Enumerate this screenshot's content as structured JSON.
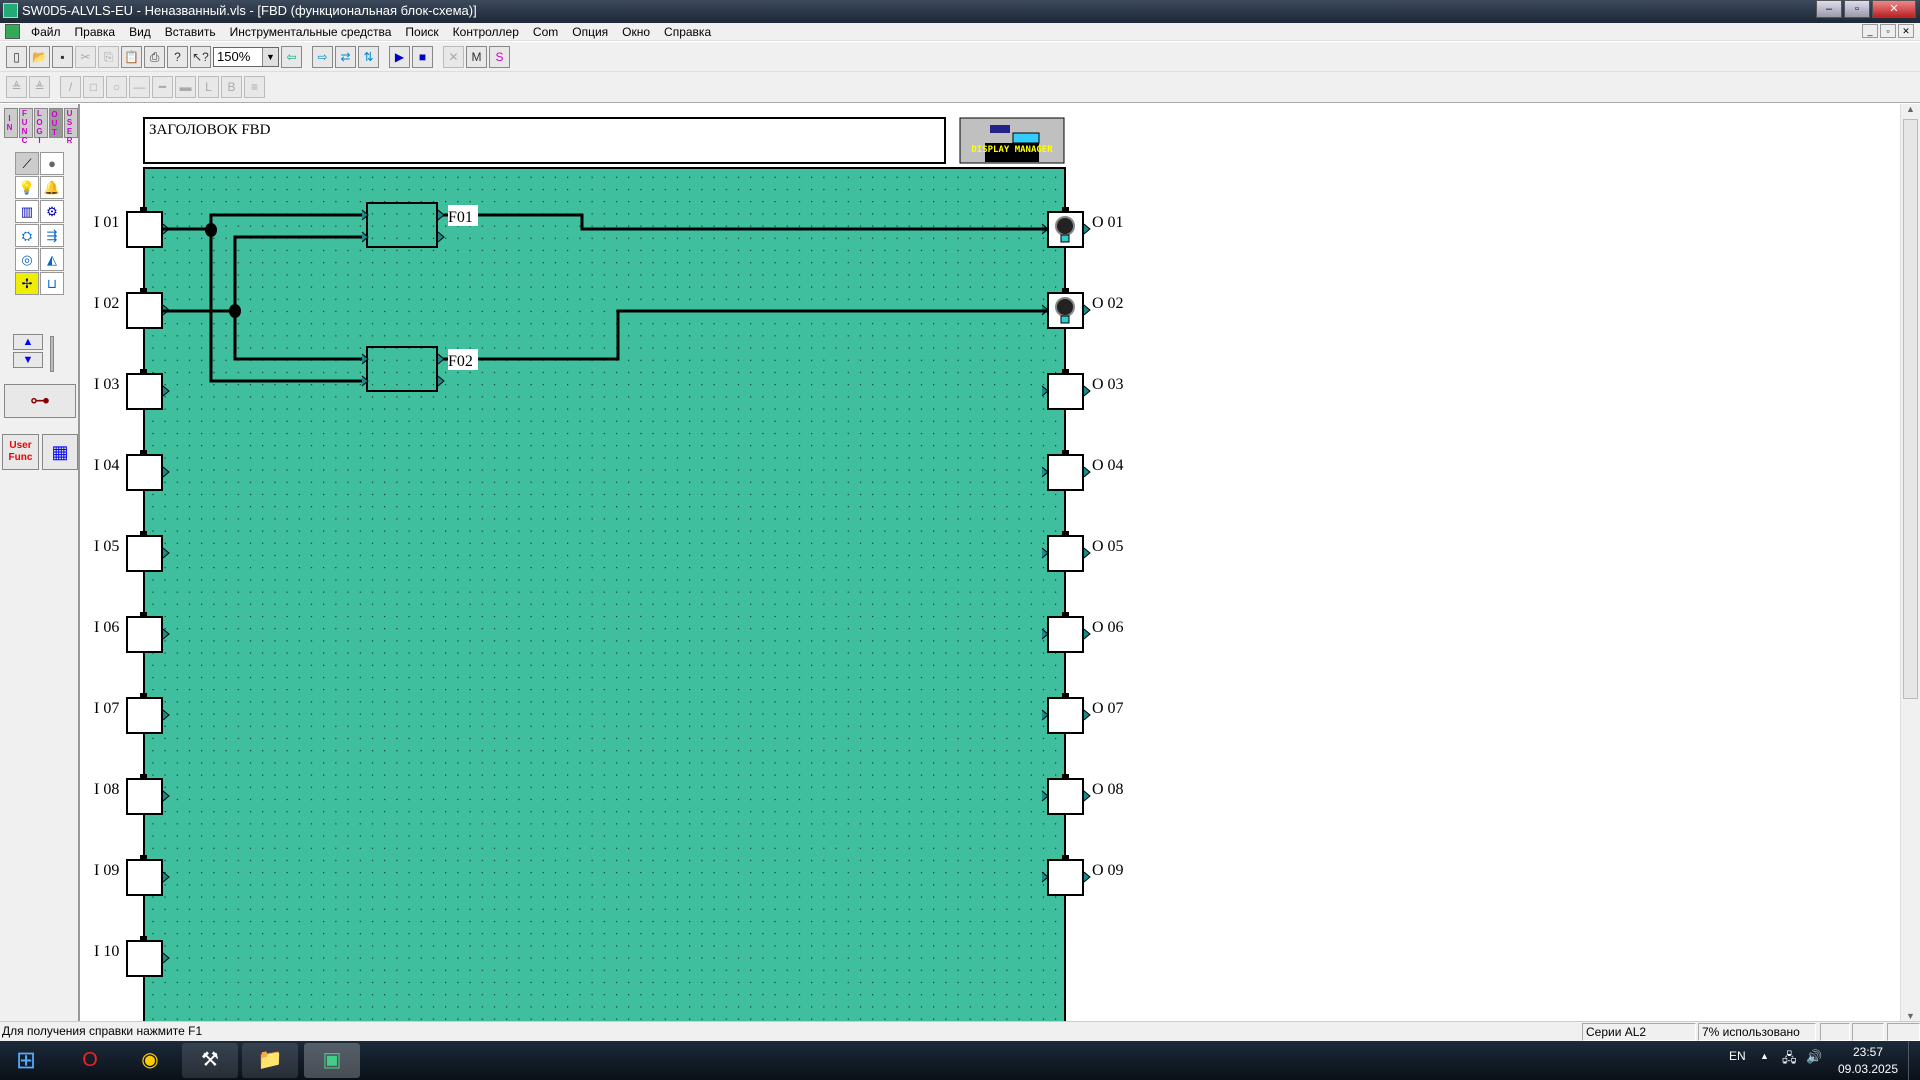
{
  "window": {
    "title": "SW0D5-ALVLS-EU - Неназванный.vls - [FBD (функциональная блок-схема)]",
    "controls": [
      "–",
      "▫",
      "✕"
    ]
  },
  "menu": [
    "Файл",
    "Правка",
    "Вид",
    "Вставить",
    "Инструментальные средства",
    "Поиск",
    "Контроллер",
    "Com",
    "Опция",
    "Окно",
    "Справка"
  ],
  "mdi_controls": [
    "_",
    "▫",
    "✕"
  ],
  "toolbar": {
    "zoom": "150%",
    "buttons1": [
      "new-file",
      "open-file",
      "save",
      "cut",
      "copy",
      "paste",
      "print",
      "help",
      "context-help"
    ],
    "buttons2": [
      "read",
      "verify",
      "write",
      "run",
      "stop",
      "disconnect",
      "monitor",
      "simulate"
    ],
    "drawing": [
      "align-top",
      "align-bottom",
      "line",
      "rectangle",
      "circle",
      "thin-line",
      "medium-line",
      "thick-line",
      "font",
      "border",
      "distribute"
    ]
  },
  "palette": {
    "tabs": [
      "IN",
      "FUNC",
      "LOGI",
      "OUT",
      "USER"
    ],
    "active_tab": "OUT",
    "items": [
      "switch",
      "lamp-dot",
      "bulb",
      "buzzer",
      "display",
      "motor",
      "valve",
      "cylinder",
      "pump",
      "nozzle",
      "fan",
      "tank"
    ],
    "user_func": "User Func"
  },
  "diagram": {
    "header": "ЗАГОЛОВОК FBD",
    "display_manager": "DISPLAY MANAGER",
    "bg_color": "#40bf9f",
    "inputs": [
      "I 01",
      "I 02",
      "I 03",
      "I 04",
      "I 05",
      "I 06",
      "I 07",
      "I 08",
      "I 09",
      "I 10"
    ],
    "outputs": [
      "O 01",
      "O 02",
      "O 03",
      "O 04",
      "O 05",
      "O 06",
      "O 07",
      "O 08",
      "O 09"
    ],
    "output_icons": [
      "bulb",
      "bulb"
    ],
    "blocks": [
      {
        "label": "F01",
        "inputs": [
          "I 01",
          "I 02"
        ],
        "output": "O 01"
      },
      {
        "label": "F02",
        "inputs": [
          "I 02",
          "I 01"
        ],
        "output": "O 02"
      }
    ]
  },
  "status": {
    "hint": "Для получения справки нажмите F1",
    "series": "Серии AL2",
    "usage": "7% использовано"
  },
  "taskbar": {
    "apps": [
      "start",
      "opera",
      "chrome",
      "tools",
      "explorer",
      "alvls"
    ],
    "lang": "EN",
    "time": "23:57",
    "date": "09.03.2025"
  }
}
